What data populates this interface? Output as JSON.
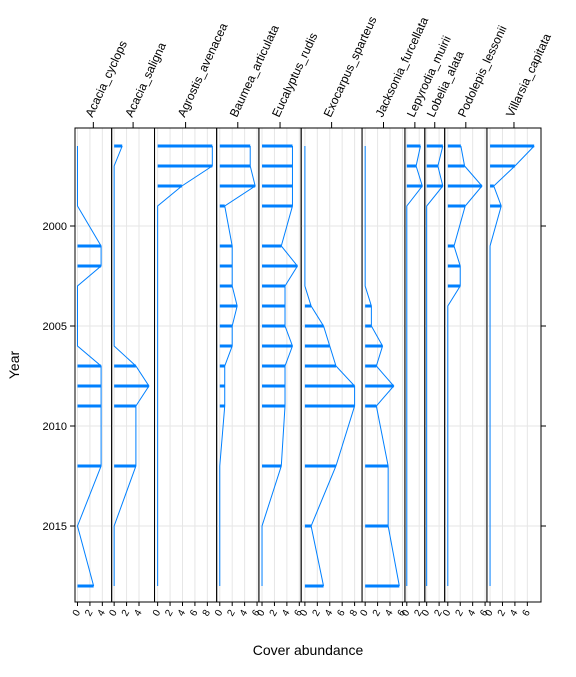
{
  "chart_data": {
    "type": "bar",
    "xlabel": "Cover abundance",
    "ylabel": "Year",
    "color": "#0080ff",
    "grid": true,
    "years": [
      1996,
      1997,
      1998,
      1999,
      2001,
      2002,
      2003,
      2004,
      2005,
      2006,
      2007,
      2008,
      2009,
      2012,
      2015,
      2018
    ],
    "ylim": [
      2018.8,
      1995.1
    ],
    "yticks": [
      2000,
      2005,
      2010,
      2015
    ],
    "panels": [
      {
        "name": "Acacia_cyclops",
        "xlim": [
          -0.4,
          5.5
        ],
        "xticks": [
          0,
          2,
          4
        ],
        "values": [
          0,
          0,
          0,
          0,
          3.8,
          3.8,
          0,
          0,
          0,
          0,
          3.8,
          3.8,
          3.8,
          3.8,
          0,
          2.6
        ]
      },
      {
        "name": "Acacia_saligna",
        "xlim": [
          -0.4,
          6.5
        ],
        "xticks": [
          0,
          2,
          4
        ],
        "values": [
          1.3,
          0,
          0,
          0,
          0,
          0,
          0,
          0,
          0,
          0,
          3.5,
          5.6,
          3.5,
          3.5,
          0,
          0
        ]
      },
      {
        "name": "Agrostis_avenacea",
        "xlim": [
          -0.5,
          9.5
        ],
        "xticks": [
          0,
          2,
          4,
          6,
          8
        ],
        "values": [
          8.8,
          8.8,
          3.9,
          0,
          0,
          0,
          0,
          0,
          0,
          0,
          0,
          0,
          0,
          0,
          0,
          0
        ]
      },
      {
        "name": "Baumea_articulata",
        "xlim": [
          -0.5,
          6.3
        ],
        "xticks": [
          0,
          2,
          4,
          6
        ],
        "values": [
          4.9,
          4.9,
          5.7,
          0.8,
          2,
          2,
          2,
          2.8,
          2,
          2,
          0.8,
          0.8,
          0.8,
          0,
          0,
          0
        ]
      },
      {
        "name": "Eucalyptus_rudis",
        "xlim": [
          -0.5,
          6.3
        ],
        "xticks": [
          0,
          2,
          4,
          6
        ],
        "values": [
          4.9,
          4.9,
          4.9,
          4.9,
          3.1,
          5.7,
          3.7,
          3.7,
          3.7,
          4.9,
          3.7,
          3.7,
          3.7,
          3.1,
          0,
          0
        ]
      },
      {
        "name": "Exocarpus_sparteus",
        "xlim": [
          -0.6,
          9.2
        ],
        "xticks": [
          0,
          2,
          4,
          6,
          8
        ],
        "values": [
          0,
          0,
          0,
          0,
          0,
          0,
          0,
          1,
          3,
          4,
          5,
          8,
          8,
          5,
          1,
          3
        ]
      },
      {
        "name": "Jacksonia_furcellata",
        "xlim": [
          -0.5,
          6.4
        ],
        "xticks": [
          0,
          2,
          4,
          6
        ],
        "values": [
          0,
          0,
          0,
          0,
          0,
          0,
          0,
          1,
          1,
          2.8,
          1.8,
          4.6,
          1.8,
          3.7,
          3.7,
          5.5
        ]
      },
      {
        "name": "Lepyrodia_muirii",
        "xlim": [
          -0.3,
          2.9
        ],
        "xticks": [
          0,
          2
        ],
        "values": [
          2.2,
          1.5,
          2.5,
          0,
          0,
          0,
          0,
          0,
          0,
          0,
          0,
          0,
          0,
          0,
          0,
          0
        ]
      },
      {
        "name": "Lobelia_alata",
        "xlim": [
          -0.3,
          2.9
        ],
        "xticks": [
          0,
          2
        ],
        "values": [
          2.6,
          1.8,
          2.6,
          0,
          0,
          0,
          0,
          0,
          0,
          0,
          0,
          0,
          0,
          0,
          0,
          0
        ]
      },
      {
        "name": "Podolepis_lessonii",
        "xlim": [
          -0.5,
          6.3
        ],
        "xticks": [
          0,
          2,
          4,
          6
        ],
        "values": [
          2.1,
          2.7,
          5.5,
          2.8,
          1,
          2,
          2,
          0,
          0,
          0,
          0,
          0,
          0,
          0,
          0,
          0
        ]
      },
      {
        "name": "Villarsia_capitata",
        "xlim": [
          -0.5,
          8.2
        ],
        "xticks": [
          0,
          2,
          4,
          6
        ],
        "values": [
          7.1,
          4,
          0.6,
          1.8,
          0,
          0,
          0,
          0,
          0,
          0,
          0,
          0,
          0,
          0,
          0,
          0
        ]
      }
    ]
  }
}
